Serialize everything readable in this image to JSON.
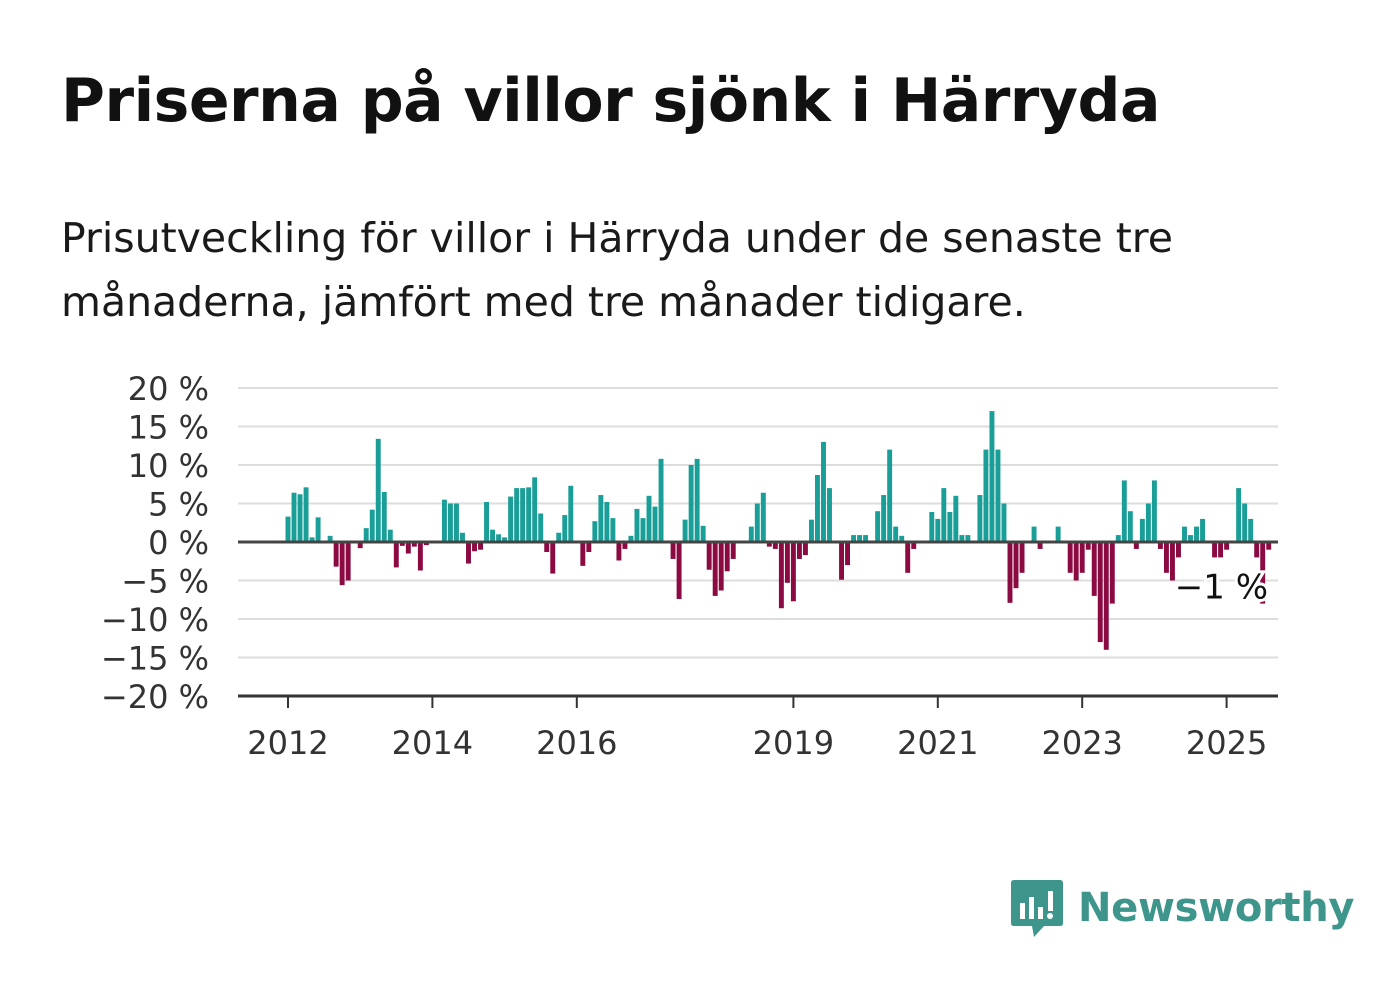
{
  "header": {
    "title": "Priserna på villor sjönk i Härryda",
    "subtitle": "Prisutveckling för villor i Härryda under de senaste tre månaderna, jämfört med tre månader tidigare."
  },
  "brand": {
    "name": "Newsworthy",
    "icon": "newsworthy-logo-icon",
    "color": "#3d958c"
  },
  "chart_data": {
    "type": "bar",
    "title": "Priserna på villor sjönk i Härryda",
    "subtitle": "Prisutveckling för villor i Härryda under de senaste tre månaderna, jämfört med tre månader tidigare.",
    "xlabel": "",
    "ylabel": "",
    "ylim": [
      -20,
      20
    ],
    "yticks": [
      20,
      15,
      10,
      5,
      0,
      -5,
      -10,
      -15,
      -20
    ],
    "ytick_labels": [
      "20 %",
      "15 %",
      "10 %",
      "5 %",
      "0 %",
      "−5 %",
      "−10 %",
      "−15 %",
      "−20 %"
    ],
    "xtick_labels": [
      "2012",
      "2014",
      "2016",
      "2019",
      "2021",
      "2023",
      "2025"
    ],
    "xtick_values": [
      2012,
      2014,
      2016,
      2019,
      2021,
      2023,
      2025
    ],
    "grid": true,
    "positive_color": "#1a9e98",
    "negative_color": "#8b0a42",
    "start": "2012-01",
    "frequency": "monthly",
    "values": [
      3.3,
      6.4,
      6.2,
      7.1,
      0.6,
      3.2,
      0.0,
      0.8,
      -3.2,
      -5.6,
      -5.0,
      0.0,
      -0.8,
      1.8,
      4.2,
      13.4,
      6.5,
      1.6,
      -3.3,
      -0.5,
      -1.5,
      -0.6,
      -3.7,
      -0.4,
      0.0,
      0.0,
      5.5,
      5.0,
      5.0,
      1.2,
      -2.8,
      -1.2,
      -1.0,
      5.2,
      1.6,
      1.0,
      0.6,
      5.9,
      7.0,
      7.0,
      7.1,
      8.4,
      3.7,
      -1.3,
      -4.1,
      1.2,
      3.5,
      7.3,
      0.0,
      -3.1,
      -1.3,
      2.7,
      6.1,
      5.2,
      3.1,
      -2.4,
      -0.9,
      0.8,
      4.3,
      3.1,
      6.0,
      4.6,
      10.8,
      0.0,
      -2.2,
      -7.4,
      2.9,
      10.0,
      10.8,
      2.1,
      -3.6,
      -7.0,
      -6.3,
      -3.8,
      -2.2,
      0.0,
      0.0,
      2.0,
      5.0,
      6.4,
      -0.6,
      -0.9,
      -8.6,
      -5.3,
      -7.7,
      -2.2,
      -1.7,
      2.9,
      8.7,
      13.0,
      7.0,
      0.0,
      -4.9,
      -3.0,
      0.9,
      0.9,
      0.9,
      0.0,
      4.0,
      6.1,
      12.0,
      2.0,
      0.8,
      -4.0,
      -0.9,
      0.0,
      0.0,
      3.9,
      3.0,
      7.0,
      3.9,
      6.0,
      0.9,
      0.9,
      0.0,
      6.1,
      12.0,
      17.0,
      12.0,
      5.0,
      -7.9,
      -6.0,
      -4.0,
      0.0,
      2.0,
      -0.9,
      0.0,
      0.0,
      2.0,
      0.0,
      -4.0,
      -5.0,
      -4.0,
      -1.0,
      -7.0,
      -13.0,
      -14.0,
      -8.0,
      0.9,
      8.0,
      4.0,
      -0.9,
      3.0,
      5.0,
      8.0,
      -0.9,
      -4.0,
      -5.0,
      -2.0,
      2.0,
      0.9,
      2.0,
      3.0,
      0.0,
      -2.0,
      -2.0,
      -1.0,
      0.0,
      7.0,
      5.0,
      3.0,
      -2.0,
      -8.0,
      -1.0
    ],
    "annotation": {
      "text": "−1 %",
      "value": -1.0
    }
  }
}
